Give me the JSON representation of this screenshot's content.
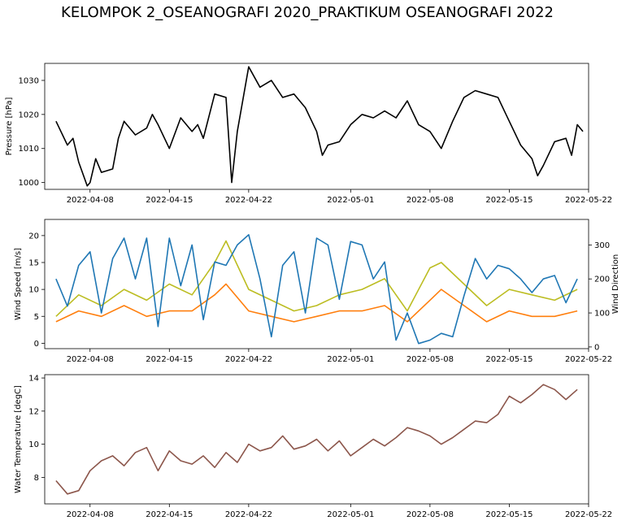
{
  "figure_title": "KELOMPOK 2_OSEANOGRAFI 2020_PRAKTIKUM OSEANOGRAFI 2022",
  "colors": {
    "pressure": "#000000",
    "wind_speed_gust": "#bcbd22",
    "wind_speed": "#ff7f0e",
    "wind_direction": "#1f77b4",
    "water_temperature": "#8c564b"
  },
  "chart_data": [
    {
      "type": "line",
      "ylabel": "Pressure [hPa]",
      "xlim": [
        "2022-04-04",
        "2022-05-22"
      ],
      "ylim": [
        998,
        1035
      ],
      "yticks": [
        1000,
        1010,
        1020,
        1030
      ],
      "xticks": [
        "2022-04-08",
        "2022-04-15",
        "2022-04-22",
        "2022-05-01",
        "2022-05-08",
        "2022-05-15",
        "2022-05-22"
      ],
      "series": [
        {
          "x": [
            "2022-04-05",
            "2022-04-06",
            "2022-04-06T12",
            "2022-04-07",
            "2022-04-07T18",
            "2022-04-08",
            "2022-04-08T12",
            "2022-04-09",
            "2022-04-10",
            "2022-04-10T12",
            "2022-04-11",
            "2022-04-12",
            "2022-04-13",
            "2022-04-13T12",
            "2022-04-14",
            "2022-04-15",
            "2022-04-16",
            "2022-04-17",
            "2022-04-17T12",
            "2022-04-18",
            "2022-04-19",
            "2022-04-20",
            "2022-04-20T12",
            "2022-04-21",
            "2022-04-22",
            "2022-04-23",
            "2022-04-24",
            "2022-04-25",
            "2022-04-26",
            "2022-04-27",
            "2022-04-28",
            "2022-04-28T12",
            "2022-04-29",
            "2022-04-30",
            "2022-05-01",
            "2022-05-02",
            "2022-05-03",
            "2022-05-04",
            "2022-05-05",
            "2022-05-06",
            "2022-05-07",
            "2022-05-08",
            "2022-05-09",
            "2022-05-10",
            "2022-05-11",
            "2022-05-12",
            "2022-05-13",
            "2022-05-14",
            "2022-05-15",
            "2022-05-16",
            "2022-05-17",
            "2022-05-17T12",
            "2022-05-18",
            "2022-05-19",
            "2022-05-20",
            "2022-05-20T12",
            "2022-05-21",
            "2022-05-21T12"
          ],
          "values": [
            1018,
            1011,
            1013,
            1006,
            999,
            1000,
            1007,
            1003,
            1004,
            1013,
            1018,
            1014,
            1016,
            1020,
            1017,
            1010,
            1019,
            1015,
            1017,
            1013,
            1026,
            1025,
            1000,
            1015,
            1034,
            1028,
            1030,
            1025,
            1026,
            1022,
            1015,
            1008,
            1011,
            1012,
            1017,
            1020,
            1019,
            1021,
            1019,
            1024,
            1017,
            1015,
            1010,
            1018,
            1025,
            1027,
            1026,
            1025,
            1018,
            1011,
            1007,
            1002,
            1005,
            1012,
            1013,
            1008,
            1017,
            1015
          ]
        }
      ]
    },
    {
      "type": "line",
      "ylabel": "Wind Speed [m/s]",
      "y2label": "Wind Direction",
      "xlim": [
        "2022-04-04",
        "2022-05-22"
      ],
      "ylim": [
        -1,
        23
      ],
      "y2lim": [
        -5,
        375
      ],
      "yticks": [
        0,
        5,
        10,
        15,
        20
      ],
      "y2ticks": [
        0,
        100,
        200,
        300
      ],
      "xticks": [
        "2022-04-08",
        "2022-04-15",
        "2022-04-22",
        "2022-05-01",
        "2022-05-08",
        "2022-05-15",
        "2022-05-22"
      ],
      "series": [
        {
          "axis": "left",
          "color_key": "wind_speed_gust",
          "x": [
            "2022-04-05",
            "2022-04-07",
            "2022-04-09",
            "2022-04-11",
            "2022-04-13",
            "2022-04-15",
            "2022-04-17",
            "2022-04-19",
            "2022-04-20",
            "2022-04-22",
            "2022-04-24",
            "2022-04-26",
            "2022-04-28",
            "2022-04-30",
            "2022-05-02",
            "2022-05-04",
            "2022-05-06",
            "2022-05-08",
            "2022-05-09",
            "2022-05-11",
            "2022-05-13",
            "2022-05-15",
            "2022-05-17",
            "2022-05-19",
            "2022-05-21"
          ],
          "values": [
            5,
            9,
            7,
            10,
            8,
            11,
            9,
            15,
            19,
            10,
            8,
            6,
            7,
            9,
            10,
            12,
            6,
            14,
            15,
            11,
            7,
            10,
            9,
            8,
            10
          ]
        },
        {
          "axis": "left",
          "color_key": "wind_speed",
          "x": [
            "2022-04-05",
            "2022-04-07",
            "2022-04-09",
            "2022-04-11",
            "2022-04-13",
            "2022-04-15",
            "2022-04-17",
            "2022-04-19",
            "2022-04-20",
            "2022-04-22",
            "2022-04-24",
            "2022-04-26",
            "2022-04-28",
            "2022-04-30",
            "2022-05-02",
            "2022-05-04",
            "2022-05-06",
            "2022-05-08",
            "2022-05-09",
            "2022-05-11",
            "2022-05-13",
            "2022-05-15",
            "2022-05-17",
            "2022-05-19",
            "2022-05-21"
          ],
          "values": [
            4,
            6,
            5,
            7,
            5,
            6,
            6,
            9,
            11,
            6,
            5,
            4,
            5,
            6,
            6,
            7,
            4,
            8,
            10,
            7,
            4,
            6,
            5,
            5,
            6
          ]
        },
        {
          "axis": "right",
          "color_key": "wind_direction",
          "x": [
            "2022-04-05",
            "2022-04-06",
            "2022-04-07",
            "2022-04-08",
            "2022-04-09",
            "2022-04-10",
            "2022-04-11",
            "2022-04-12",
            "2022-04-13",
            "2022-04-14",
            "2022-04-15",
            "2022-04-16",
            "2022-04-17",
            "2022-04-18",
            "2022-04-19",
            "2022-04-20",
            "2022-04-21",
            "2022-04-22",
            "2022-04-23",
            "2022-04-24",
            "2022-04-25",
            "2022-04-26",
            "2022-04-27",
            "2022-04-28",
            "2022-04-29",
            "2022-04-30",
            "2022-05-01",
            "2022-05-02",
            "2022-05-03",
            "2022-05-04",
            "2022-05-05",
            "2022-05-06",
            "2022-05-07",
            "2022-05-08",
            "2022-05-09",
            "2022-05-10",
            "2022-05-11",
            "2022-05-12",
            "2022-05-13",
            "2022-05-14",
            "2022-05-15",
            "2022-05-16",
            "2022-05-17",
            "2022-05-18",
            "2022-05-19",
            "2022-05-20",
            "2022-05-21"
          ],
          "values": [
            200,
            120,
            240,
            280,
            100,
            260,
            320,
            200,
            320,
            60,
            320,
            180,
            300,
            80,
            250,
            240,
            300,
            330,
            200,
            30,
            240,
            280,
            100,
            320,
            300,
            140,
            310,
            300,
            200,
            250,
            20,
            100,
            10,
            20,
            40,
            30,
            150,
            260,
            200,
            240,
            230,
            200,
            160,
            200,
            210,
            130,
            200
          ]
        }
      ]
    },
    {
      "type": "line",
      "ylabel": "Water Temperature [degC]",
      "xlim": [
        "2022-04-04",
        "2022-05-22"
      ],
      "ylim": [
        6.4,
        14.2
      ],
      "yticks": [
        8,
        10,
        12,
        14
      ],
      "xticks": [
        "2022-04-08",
        "2022-04-15",
        "2022-04-22",
        "2022-05-01",
        "2022-05-08",
        "2022-05-15",
        "2022-05-22"
      ],
      "series": [
        {
          "x": [
            "2022-04-05",
            "2022-04-06",
            "2022-04-07",
            "2022-04-08",
            "2022-04-09",
            "2022-04-10",
            "2022-04-11",
            "2022-04-12",
            "2022-04-13",
            "2022-04-14",
            "2022-04-15",
            "2022-04-16",
            "2022-04-17",
            "2022-04-18",
            "2022-04-19",
            "2022-04-20",
            "2022-04-21",
            "2022-04-22",
            "2022-04-23",
            "2022-04-24",
            "2022-04-25",
            "2022-04-26",
            "2022-04-27",
            "2022-04-28",
            "2022-04-29",
            "2022-04-30",
            "2022-05-01",
            "2022-05-02",
            "2022-05-03",
            "2022-05-04",
            "2022-05-05",
            "2022-05-06",
            "2022-05-07",
            "2022-05-08",
            "2022-05-09",
            "2022-05-10",
            "2022-05-11",
            "2022-05-12",
            "2022-05-13",
            "2022-05-14",
            "2022-05-15",
            "2022-05-16",
            "2022-05-17",
            "2022-05-18",
            "2022-05-19",
            "2022-05-20",
            "2022-05-21"
          ],
          "values": [
            7.8,
            7.0,
            7.2,
            8.4,
            9.0,
            9.3,
            8.7,
            9.5,
            9.8,
            8.4,
            9.6,
            9.0,
            8.8,
            9.3,
            8.6,
            9.5,
            8.9,
            10.0,
            9.6,
            9.8,
            10.5,
            9.7,
            9.9,
            10.3,
            9.6,
            10.2,
            9.3,
            9.8,
            10.3,
            9.9,
            10.4,
            11.0,
            10.8,
            10.5,
            10.0,
            10.4,
            10.9,
            11.4,
            11.3,
            11.8,
            12.9,
            12.5,
            13.0,
            13.6,
            13.3,
            12.7,
            13.3
          ]
        }
      ]
    }
  ]
}
